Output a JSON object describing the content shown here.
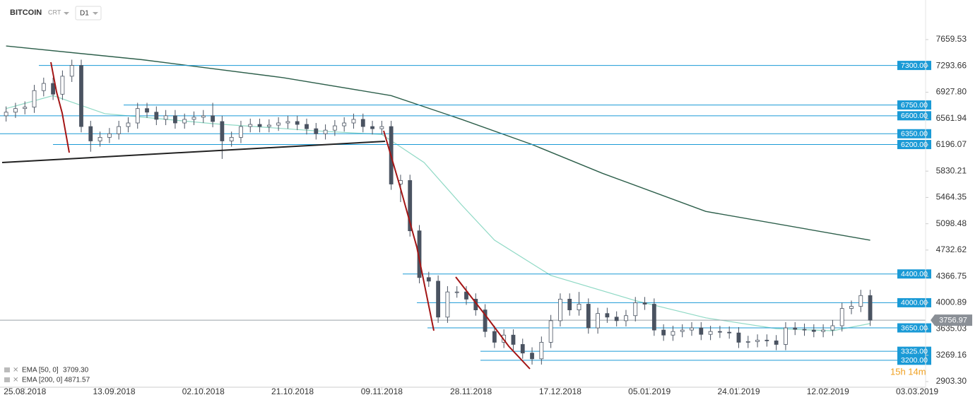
{
  "header": {
    "symbol": "BITCOIN",
    "mode": "CRT",
    "interval": "D1",
    "countdown": "15h 14m"
  },
  "chart_data": {
    "type": "candlestick",
    "x": [
      -4,
      -2,
      0,
      2,
      4,
      6,
      8,
      10,
      12,
      14,
      16,
      18,
      20,
      22,
      24,
      26,
      28,
      30,
      32,
      34,
      36,
      38,
      40,
      42,
      44,
      46,
      48,
      50,
      52,
      54,
      56,
      58,
      60,
      62,
      64,
      66,
      68,
      70,
      72,
      74,
      76,
      78,
      80,
      82,
      84,
      86,
      88,
      90,
      92,
      94,
      96,
      98,
      100,
      102,
      104,
      106,
      108,
      110,
      112,
      114,
      116,
      118,
      120,
      122,
      124,
      126,
      128,
      130,
      132,
      134,
      136,
      138,
      140,
      142,
      144,
      146,
      148,
      150,
      152,
      154,
      156,
      158,
      160,
      162,
      164,
      166,
      168,
      170,
      172,
      174,
      176,
      178,
      180
    ],
    "open": [
      6600,
      6650,
      6700,
      6720,
      6950,
      7050,
      6900,
      7150,
      7300,
      6450,
      6250,
      6300,
      6350,
      6450,
      6500,
      6700,
      6650,
      6550,
      6600,
      6500,
      6550,
      6580,
      6600,
      6520,
      6250,
      6300,
      6450,
      6480,
      6450,
      6470,
      6500,
      6520,
      6480,
      6420,
      6350,
      6400,
      6460,
      6500,
      6550,
      6450,
      6420,
      6450,
      5650,
      5700,
      5000,
      4350,
      4300,
      3800,
      4150,
      4150,
      4050,
      3900,
      3600,
      3450,
      3550,
      3420,
      3300,
      3220,
      3450,
      3750,
      4050,
      3900,
      3980,
      3650,
      3850,
      3800,
      3750,
      3820,
      4000,
      3980,
      3620,
      3550,
      3600,
      3620,
      3650,
      3560,
      3600,
      3590,
      3580,
      3450,
      3460,
      3480,
      3470,
      3420,
      3650,
      3630,
      3620,
      3600,
      3620,
      3680,
      3920,
      3950,
      4100
    ],
    "high": [
      6730,
      6780,
      6800,
      7030,
      7130,
      7130,
      7230,
      7380,
      7380,
      6530,
      6380,
      6430,
      6530,
      6580,
      6780,
      6780,
      6730,
      6680,
      6680,
      6630,
      6660,
      6680,
      6780,
      6600,
      6380,
      6530,
      6560,
      6560,
      6550,
      6580,
      6600,
      6600,
      6560,
      6500,
      6480,
      6540,
      6580,
      6630,
      6630,
      6530,
      6530,
      6530,
      5780,
      5780,
      5080,
      4430,
      4380,
      4230,
      4230,
      4230,
      4130,
      3980,
      3680,
      3630,
      3630,
      3500,
      3380,
      3530,
      3830,
      4130,
      4130,
      4150,
      4060,
      3930,
      3930,
      3880,
      3900,
      4080,
      4080,
      4060,
      3700,
      3680,
      3700,
      3730,
      3730,
      3680,
      3680,
      3670,
      3660,
      3540,
      3560,
      3560,
      3550,
      3730,
      3730,
      3710,
      3700,
      3700,
      3760,
      4000,
      4030,
      4180,
      4180
    ],
    "low": [
      6520,
      6570,
      6620,
      6640,
      6870,
      6820,
      6820,
      7070,
      6370,
      6100,
      6170,
      6220,
      6270,
      6370,
      6420,
      6570,
      6470,
      6470,
      6420,
      6420,
      6470,
      6500,
      6440,
      6000,
      6170,
      6220,
      6370,
      6370,
      6370,
      6390,
      6420,
      6400,
      6340,
      6270,
      6270,
      6320,
      6380,
      6420,
      6370,
      6340,
      6340,
      5570,
      5400,
      4920,
      4270,
      4220,
      3720,
      3720,
      4070,
      3970,
      3820,
      3520,
      3370,
      3370,
      3340,
      3220,
      3140,
      3140,
      3370,
      3670,
      3820,
      3820,
      3570,
      3570,
      3720,
      3670,
      3670,
      3740,
      3900,
      3540,
      3470,
      3470,
      3520,
      3540,
      3480,
      3480,
      3510,
      3500,
      3370,
      3370,
      3380,
      3390,
      3340,
      3340,
      3550,
      3540,
      3520,
      3520,
      3540,
      3600,
      3840,
      3870,
      3677
    ],
    "close": [
      6650,
      6700,
      6720,
      6950,
      7050,
      6900,
      7150,
      7300,
      6450,
      6250,
      6300,
      6350,
      6450,
      6500,
      6700,
      6650,
      6550,
      6600,
      6500,
      6550,
      6580,
      6600,
      6520,
      6250,
      6300,
      6450,
      6480,
      6450,
      6470,
      6500,
      6520,
      6480,
      6420,
      6350,
      6400,
      6460,
      6500,
      6550,
      6450,
      6420,
      6450,
      5650,
      5700,
      5000,
      4350,
      4300,
      3800,
      4150,
      4150,
      4050,
      3900,
      3600,
      3450,
      3550,
      3420,
      3300,
      3220,
      3450,
      3750,
      4050,
      3900,
      3980,
      3650,
      3850,
      3800,
      3750,
      3820,
      4000,
      3980,
      3620,
      3550,
      3600,
      3620,
      3650,
      3560,
      3600,
      3590,
      3580,
      3450,
      3460,
      3480,
      3470,
      3420,
      3650,
      3630,
      3620,
      3600,
      3620,
      3680,
      3920,
      3950,
      4100,
      3757
    ],
    "up_color": "#ffffff",
    "down_color": "#4a5361",
    "lines": [
      {
        "name": "EMA [50, 0]",
        "legend_value": "3709.30",
        "color": "#8fd9c5",
        "x": [
          -4,
          6,
          17,
          40,
          62,
          76,
          85,
          93,
          100,
          112,
          130,
          145,
          160,
          172,
          180
        ],
        "values": [
          6700,
          6880,
          6630,
          6490,
          6390,
          6340,
          5950,
          5360,
          4870,
          4380,
          4030,
          3790,
          3640,
          3610,
          3710
        ]
      },
      {
        "name": "EMA [200, 0]",
        "legend_value": "4871.57",
        "color": "#2c5e4a",
        "x": [
          -4,
          25,
          55,
          78,
          93,
          108,
          123,
          145,
          180
        ],
        "values": [
          7570,
          7380,
          7130,
          6880,
          6550,
          6200,
          5800,
          5270,
          4870
        ]
      }
    ],
    "levels": [
      {
        "value": 7300,
        "label": "7300.00"
      },
      {
        "value": 6750,
        "label": "6750.00"
      },
      {
        "value": 6600,
        "label": "6600.00"
      },
      {
        "value": 6350,
        "label": "6350.00"
      },
      {
        "value": 6200,
        "label": "6200.00"
      },
      {
        "value": 4400,
        "label": "4400.00"
      },
      {
        "value": 4000,
        "label": "4000.00"
      },
      {
        "value": 3650,
        "label": "3650.00"
      },
      {
        "value": 3325,
        "label": "3325.00"
      },
      {
        "value": 3200,
        "label": "3200.00"
      }
    ],
    "level_color": "#1a9ad6",
    "last_price": 3756.97,
    "xlim": [
      -5.3,
      191.8
    ],
    "xticks": [
      {
        "value": 0,
        "label": "25.08.2018"
      },
      {
        "value": 19,
        "label": "13.09.2018"
      },
      {
        "value": 38,
        "label": "02.10.2018"
      },
      {
        "value": 57,
        "label": "21.10.2018"
      },
      {
        "value": 76,
        "label": "09.11.2018"
      },
      {
        "value": 95,
        "label": "28.11.2018"
      },
      {
        "value": 114,
        "label": "17.12.2018"
      },
      {
        "value": 133,
        "label": "05.01.2019"
      },
      {
        "value": 152,
        "label": "24.01.2019"
      },
      {
        "value": 171,
        "label": "12.02.2019"
      },
      {
        "value": 190,
        "label": "03.03.2019"
      }
    ],
    "ylim": [
      2825,
      8210
    ],
    "yticks": [
      7659.53,
      7293.66,
      {
        "value": 6927.8,
        "label": "6927.80"
      },
      6561.94,
      6196.07,
      5830.21,
      5464.35,
      5098.48,
      4732.62,
      4366.75,
      4000.89,
      {
        "value": 3635.03,
        "label": "3635.03"
      },
      3269.16,
      {
        "value": 2903.3,
        "label": "2903.30"
      }
    ]
  }
}
